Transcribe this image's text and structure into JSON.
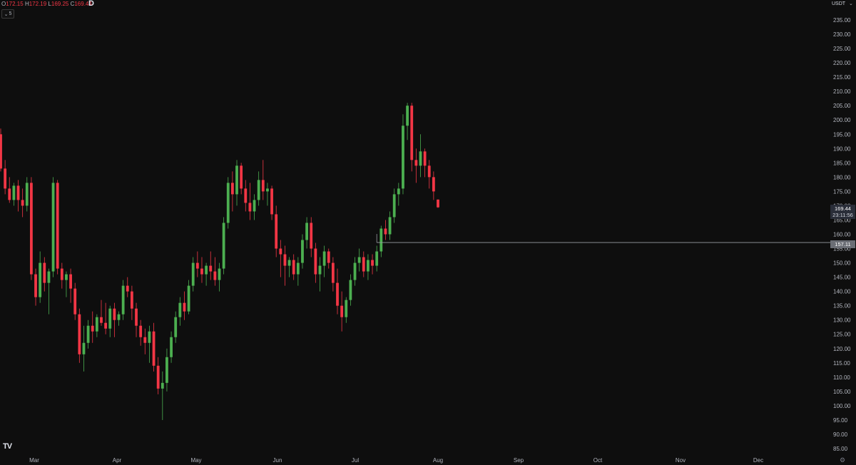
{
  "legend": {
    "open_key": "O",
    "open_val": "172.15",
    "high_key": "H",
    "high_val": "172.19",
    "low_key": "L",
    "low_val": "169.25",
    "close_key": "C",
    "close_val": "169.44",
    "interval": "D"
  },
  "collapse": {
    "icon": "chevron-down-icon",
    "count": "5"
  },
  "price_axis": {
    "currency": "USDT",
    "last_price": "169.44",
    "countdown": "23:11:56",
    "level_price": "157.11"
  },
  "logo": "TV",
  "colors": {
    "up": "#26a69a",
    "down": "#f23645",
    "up_bar": "#4caf50",
    "background": "#0e0e0e"
  },
  "chart_data": {
    "type": "candlestick",
    "ylim": [
      85,
      235
    ],
    "y_ticks": [
      85,
      90,
      95,
      100,
      105,
      110,
      115,
      120,
      125,
      130,
      135,
      140,
      145,
      150,
      155,
      160,
      165,
      170,
      175,
      180,
      185,
      190,
      195,
      200,
      205,
      210,
      215,
      220,
      225,
      230,
      235
    ],
    "x_ticks": [
      "Mar",
      "Apr",
      "May",
      "Jun",
      "Jul",
      "Aug",
      "Sep",
      "Oct",
      "Nov",
      "Dec"
    ],
    "horizontal_level": 157.11,
    "candles": [
      [
        195,
        197,
        182,
        183
      ],
      [
        183,
        186,
        174,
        176
      ],
      [
        176,
        180,
        171,
        172
      ],
      [
        172,
        178,
        170,
        177
      ],
      [
        177,
        179,
        168,
        172
      ],
      [
        172,
        176,
        166,
        170
      ],
      [
        170,
        180,
        168,
        178
      ],
      [
        178,
        180,
        144,
        146
      ],
      [
        146,
        148,
        135,
        138
      ],
      [
        138,
        154,
        136,
        150
      ],
      [
        150,
        152,
        140,
        143
      ],
      [
        143,
        148,
        132,
        147
      ],
      [
        147,
        180,
        145,
        178
      ],
      [
        178,
        179,
        146,
        148
      ],
      [
        148,
        150,
        141,
        144
      ],
      [
        144,
        147,
        138,
        146
      ],
      [
        146,
        148,
        136,
        141
      ],
      [
        141,
        143,
        130,
        132
      ],
      [
        132,
        134,
        115,
        118
      ],
      [
        118,
        128,
        112,
        122
      ],
      [
        122,
        130,
        120,
        128
      ],
      [
        128,
        133,
        122,
        126
      ],
      [
        126,
        132,
        124,
        131
      ],
      [
        131,
        137,
        128,
        129
      ],
      [
        129,
        136,
        125,
        127
      ],
      [
        127,
        135,
        124,
        134
      ],
      [
        134,
        136,
        124,
        130
      ],
      [
        130,
        133,
        128,
        132
      ],
      [
        132,
        144,
        130,
        142
      ],
      [
        142,
        145,
        138,
        140
      ],
      [
        140,
        142,
        130,
        134
      ],
      [
        134,
        136,
        124,
        128
      ],
      [
        128,
        130,
        121,
        124
      ],
      [
        124,
        127,
        118,
        122
      ],
      [
        122,
        128,
        115,
        126
      ],
      [
        126,
        129,
        112,
        114
      ],
      [
        114,
        117,
        104,
        106
      ],
      [
        106,
        112,
        95,
        108
      ],
      [
        108,
        120,
        105,
        117
      ],
      [
        117,
        126,
        115,
        124
      ],
      [
        124,
        133,
        122,
        131
      ],
      [
        131,
        138,
        128,
        136
      ],
      [
        136,
        140,
        130,
        133
      ],
      [
        133,
        144,
        132,
        142
      ],
      [
        142,
        152,
        140,
        150
      ],
      [
        150,
        154,
        145,
        148
      ],
      [
        148,
        152,
        143,
        146
      ],
      [
        146,
        150,
        142,
        149
      ],
      [
        149,
        154,
        144,
        147
      ],
      [
        147,
        152,
        142,
        144
      ],
      [
        144,
        150,
        140,
        148
      ],
      [
        148,
        166,
        146,
        164
      ],
      [
        164,
        180,
        162,
        178
      ],
      [
        178,
        182,
        168,
        174
      ],
      [
        174,
        186,
        170,
        184
      ],
      [
        184,
        185,
        174,
        176
      ],
      [
        176,
        179,
        168,
        171
      ],
      [
        171,
        178,
        165,
        168
      ],
      [
        168,
        174,
        165,
        172
      ],
      [
        172,
        182,
        170,
        179
      ],
      [
        179,
        186,
        172,
        175
      ],
      [
        175,
        178,
        170,
        176
      ],
      [
        176,
        177,
        165,
        167
      ],
      [
        167,
        170,
        152,
        155
      ],
      [
        155,
        158,
        145,
        153
      ],
      [
        153,
        156,
        142,
        149
      ],
      [
        149,
        152,
        145,
        151
      ],
      [
        151,
        153,
        144,
        146
      ],
      [
        146,
        152,
        142,
        150
      ],
      [
        150,
        160,
        148,
        158
      ],
      [
        158,
        166,
        155,
        164
      ],
      [
        164,
        166,
        152,
        155
      ],
      [
        155,
        157,
        143,
        146
      ],
      [
        146,
        152,
        140,
        149
      ],
      [
        149,
        156,
        145,
        154
      ],
      [
        154,
        155,
        148,
        150
      ],
      [
        150,
        152,
        140,
        143
      ],
      [
        143,
        148,
        132,
        135
      ],
      [
        135,
        140,
        126,
        131
      ],
      [
        131,
        138,
        129,
        137
      ],
      [
        137,
        146,
        135,
        144
      ],
      [
        144,
        152,
        142,
        150
      ],
      [
        150,
        155,
        147,
        152
      ],
      [
        152,
        154,
        145,
        147
      ],
      [
        147,
        153,
        144,
        151
      ],
      [
        151,
        153,
        146,
        149
      ],
      [
        149,
        156,
        147,
        154
      ],
      [
        154,
        163,
        152,
        162
      ],
      [
        162,
        165,
        158,
        160
      ],
      [
        160,
        168,
        158,
        166
      ],
      [
        166,
        176,
        164,
        174
      ],
      [
        174,
        178,
        170,
        176
      ],
      [
        176,
        202,
        174,
        198
      ],
      [
        198,
        206,
        193,
        205
      ],
      [
        205,
        206,
        182,
        186
      ],
      [
        186,
        190,
        178,
        184
      ],
      [
        184,
        195,
        180,
        189
      ],
      [
        189,
        190,
        180,
        184
      ],
      [
        184,
        186,
        176,
        180
      ],
      [
        180,
        182,
        172,
        175
      ],
      [
        172.15,
        172.19,
        169.25,
        169.44
      ]
    ]
  }
}
